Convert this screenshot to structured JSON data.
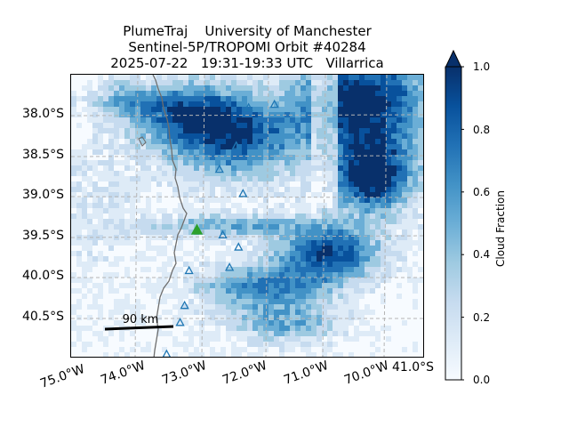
{
  "title": {
    "line1": "PlumeTraj    University of Manchester",
    "line2": "Sentinel-5P/TROPOMI Orbit #40284",
    "line3": "2025-07-22   19:31-19:33 UTC   Villarrica"
  },
  "map": {
    "projection": "plate-carree",
    "lon_range": [
      -73.05,
      -69.9
    ],
    "lat_range": [
      -41.0,
      -37.5
    ],
    "lat_ticks": [
      "38.0°S",
      "38.5°S",
      "39.0°S",
      "39.5°S",
      "40.0°S",
      "40.5°S"
    ],
    "lon_ticks": [
      "75.0°W",
      "74.0°W",
      "73.0°W",
      "72.0°W",
      "71.0°W",
      "70.0°W",
      "41.0°S"
    ],
    "gridlines": "dashed grey",
    "coastline": "grey",
    "scale_bar_label": "90 km",
    "volcano": {
      "name": "Villarrica",
      "lat": -39.42,
      "lon": -71.93,
      "marker": "green-triangle"
    },
    "other_volcanoes": [
      {
        "lat": -37.91,
        "lon": -71.47
      },
      {
        "lat": -37.87,
        "lon": -71.24
      },
      {
        "lat": -38.38,
        "lon": -71.58
      },
      {
        "lat": -38.67,
        "lon": -71.73
      },
      {
        "lat": -38.97,
        "lon": -71.52
      },
      {
        "lat": -39.48,
        "lon": -71.7
      },
      {
        "lat": -39.63,
        "lon": -71.56
      },
      {
        "lat": -39.88,
        "lon": -71.64
      },
      {
        "lat": -39.92,
        "lon": -72.0
      },
      {
        "lat": -40.35,
        "lon": -72.04
      },
      {
        "lat": -40.56,
        "lon": -72.08
      },
      {
        "lat": -40.95,
        "lon": -72.2
      }
    ],
    "colormap": "Blues"
  },
  "colorbar": {
    "label": "Cloud Fraction",
    "ticks": [
      "0.0",
      "0.2",
      "0.4",
      "0.6",
      "0.8",
      "1.0"
    ],
    "range": [
      0.0,
      1.0
    ],
    "extend": "max"
  },
  "colors": {
    "volcano_marker": "#2ca02c",
    "other_volcano_marker": "#1f77b4",
    "coastline": "#6e6e6e",
    "gridline": "#b4b4b4"
  }
}
